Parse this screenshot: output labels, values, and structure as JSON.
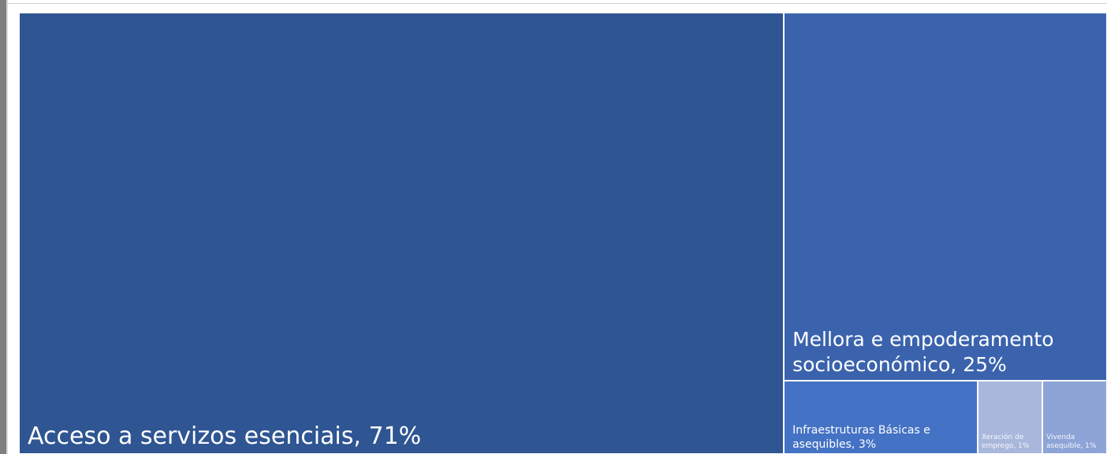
{
  "chart_data": {
    "type": "treemap",
    "categories": [
      "Acceso a servizos esenciais,",
      "Mellora e empoderamento socioeconómico,",
      "Infraestruturas Básicas e asequibles,",
      "Xeración de emprego,",
      "Vivenda asequible,"
    ],
    "values": [
      71,
      25,
      3,
      1,
      1
    ],
    "value_labels": [
      "71%",
      "25%",
      "3%",
      "1%",
      "1%"
    ],
    "colors": [
      "#2f5592",
      "#3b63ad",
      "#4472c4",
      "#a9b7dc",
      "#8ea4d6"
    ]
  }
}
